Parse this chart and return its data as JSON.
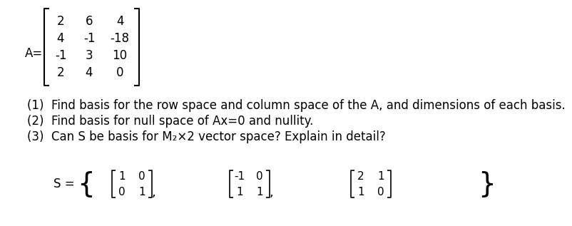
{
  "bg_color": "#ffffff",
  "matrix_label": "A=",
  "matrix_rows": [
    [
      "2",
      "6",
      "4"
    ],
    [
      "4",
      "-1",
      "-18"
    ],
    [
      "-1",
      "3",
      "10"
    ],
    [
      "2",
      "4",
      "0"
    ]
  ],
  "questions": [
    "(1)  Find basis for the row space and column space of the A, and dimensions of each basis.",
    "(2)  Find basis for null space of Ax=0 and nullity.",
    "(3)  Can S be basis for M₂×2 vector space? Explain in detail?"
  ],
  "s_label": "S =",
  "matrices_s": [
    [
      [
        "1",
        "0"
      ],
      [
        "0",
        "1"
      ]
    ],
    [
      [
        "-1",
        "0"
      ],
      [
        "1",
        "1"
      ]
    ],
    [
      [
        "2",
        "1"
      ],
      [
        "1",
        "0"
      ]
    ]
  ],
  "mat_fontsize": 12,
  "q_fontsize": 12,
  "s_fontsize": 12,
  "small_mat_fontsize": 11
}
